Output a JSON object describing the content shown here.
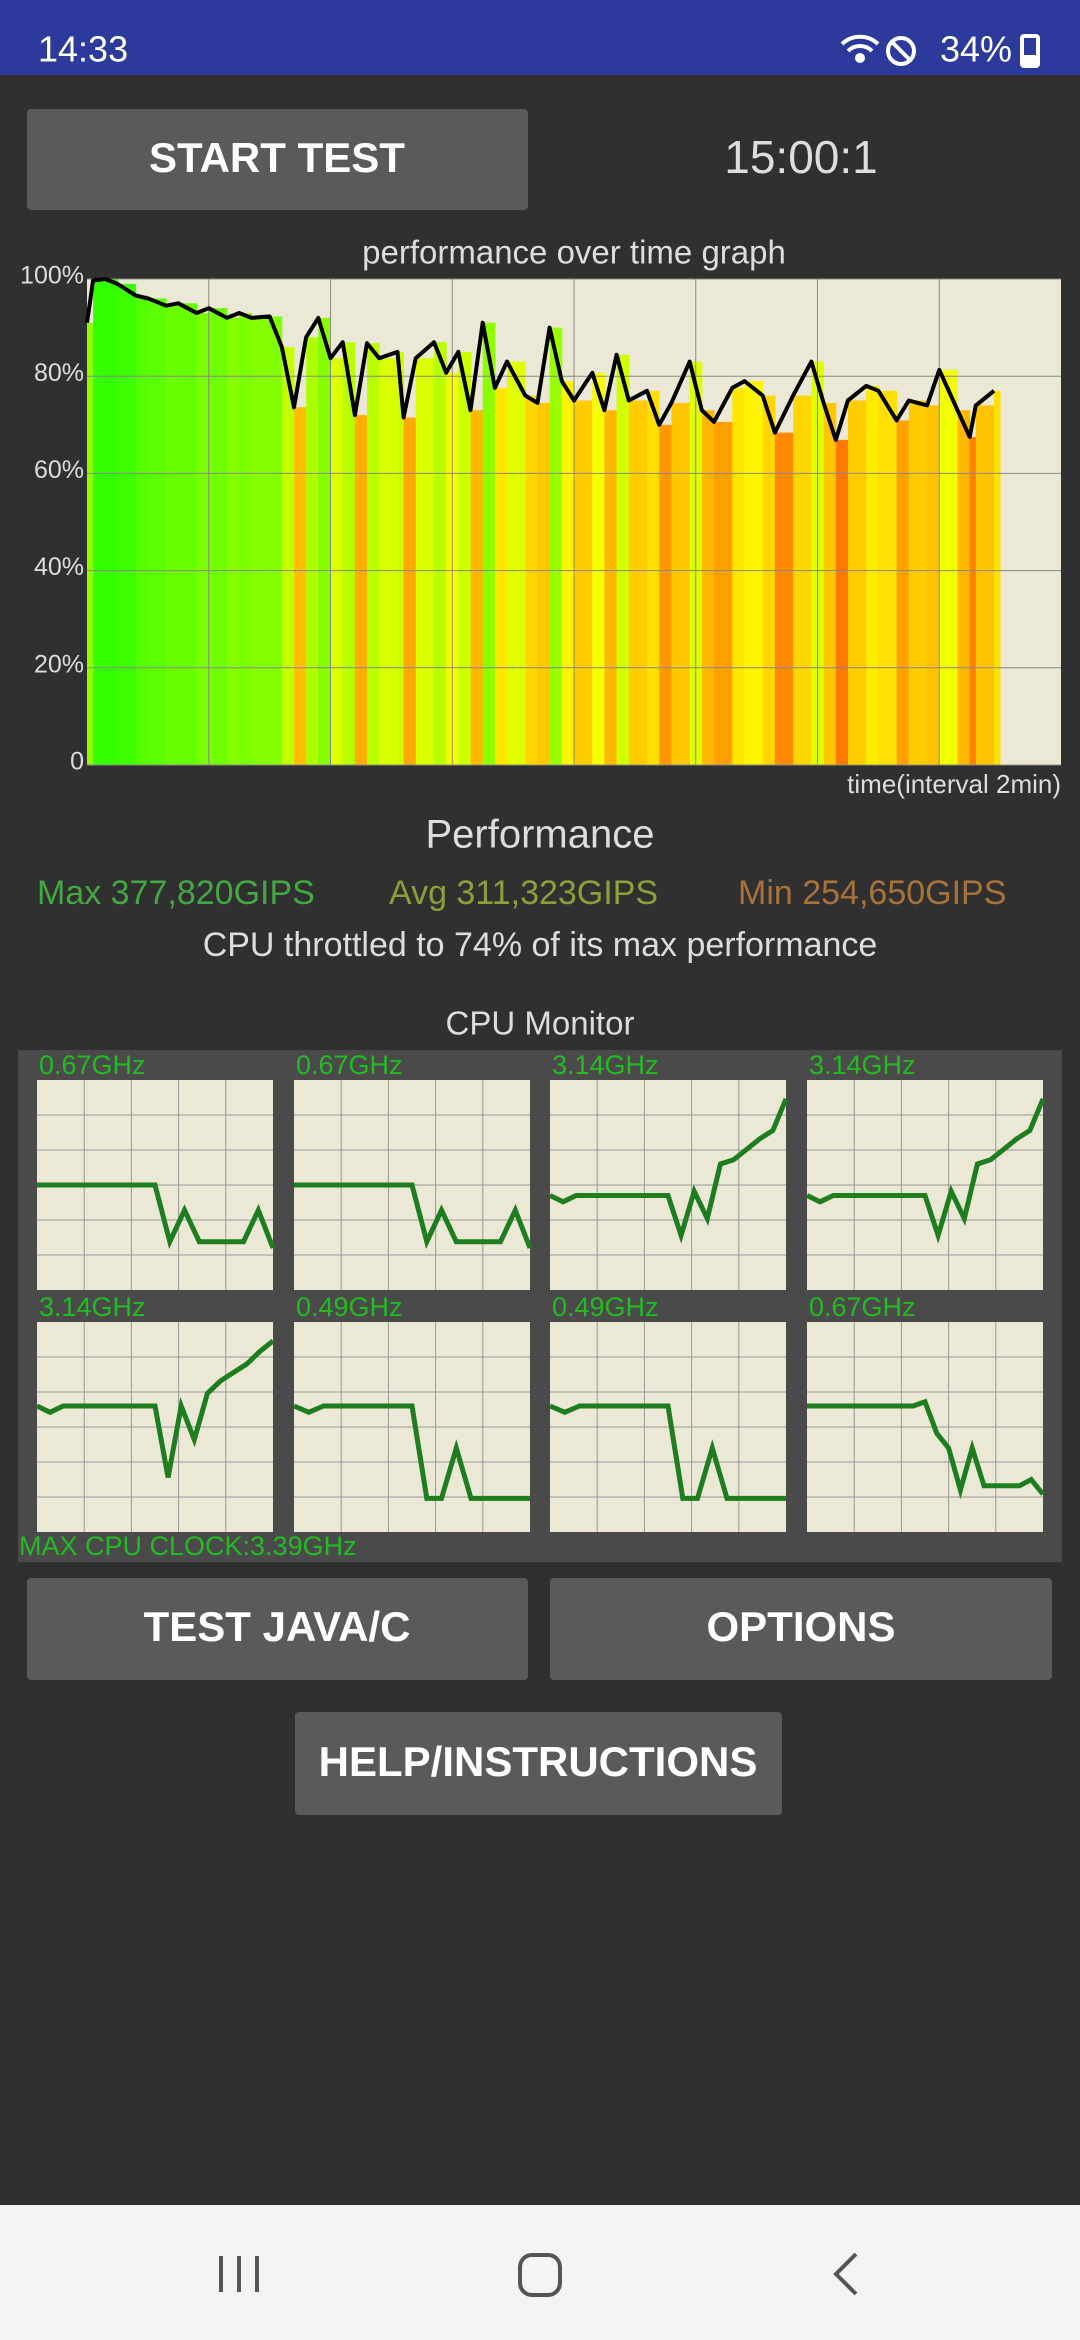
{
  "status_bar": {
    "time": "14:33",
    "battery": "34%"
  },
  "start_button": "START TEST",
  "timer": "15:00:1",
  "chart_data": {
    "type": "line",
    "title": "performance over time graph",
    "x_label": "time(interval 2min)",
    "xlim": [
      0,
      16
    ],
    "ylim": [
      0,
      100
    ],
    "yticks": [
      0,
      {
        "value": 20,
        "label": "20%"
      },
      {
        "value": 40,
        "label": "40%"
      },
      {
        "value": 60,
        "label": "60%"
      },
      {
        "value": 80,
        "label": "80%"
      },
      {
        "value": 100,
        "label": "100%"
      }
    ],
    "x_grid": [
      2,
      4,
      6,
      8,
      10,
      12,
      14
    ],
    "grid": true,
    "color": "#000000",
    "x": [
      0,
      0.1,
      0.3,
      0.5,
      0.8,
      1.0,
      1.3,
      1.5,
      1.8,
      2.0,
      2.3,
      2.5,
      2.7,
      3.0,
      3.2,
      3.4,
      3.6,
      3.8,
      4.0,
      4.2,
      4.4,
      4.6,
      4.8,
      5.1,
      5.2,
      5.4,
      5.7,
      5.9,
      6.1,
      6.3,
      6.5,
      6.7,
      6.9,
      7.2,
      7.4,
      7.6,
      7.8,
      8.0,
      8.3,
      8.5,
      8.7,
      8.9,
      9.2,
      9.4,
      9.6,
      9.9,
      10.1,
      10.3,
      10.6,
      10.8,
      11.1,
      11.3,
      11.6,
      11.9,
      12.1,
      12.3,
      12.5,
      12.8,
      13.0,
      13.3,
      13.5,
      13.8,
      14.0,
      14.3,
      14.5,
      14.6,
      14.9
    ],
    "values": [
      91,
      99.7,
      100,
      99,
      96.6,
      96,
      94.5,
      95,
      93,
      94,
      92,
      93,
      92,
      92.3,
      86,
      73.6,
      88,
      92,
      83.7,
      87,
      72,
      86.8,
      83.7,
      85,
      71.5,
      83.7,
      87,
      80.7,
      85,
      73,
      91,
      77.6,
      83,
      76,
      74.5,
      90,
      79,
      75,
      80.7,
      73,
      84.4,
      75,
      77,
      70,
      74.5,
      83,
      73,
      70.6,
      77.6,
      79,
      76,
      68.4,
      76,
      83,
      74.5,
      66.9,
      75,
      78,
      77,
      70.9,
      75,
      74,
      81.3,
      73,
      67.5,
      74,
      77
    ]
  },
  "performance": {
    "title": "Performance",
    "max": "Max 377,820GIPS",
    "avg": "Avg 311,323GIPS",
    "min": "Min 254,650GIPS",
    "throttle": "CPU throttled to 74% of its max performance"
  },
  "cpu_monitor": {
    "title": "CPU Monitor",
    "ylim": [
      0,
      100
    ],
    "cores": [
      {
        "label": "0.67GHz",
        "values": [
          50,
          50,
          50,
          50,
          50,
          50,
          50,
          50,
          50,
          23,
          38,
          23,
          23,
          23,
          23,
          38,
          20
        ]
      },
      {
        "label": "0.67GHz",
        "values": [
          50,
          50,
          50,
          50,
          50,
          50,
          50,
          50,
          50,
          23,
          38,
          23,
          23,
          23,
          23,
          38,
          20
        ]
      },
      {
        "label": "3.14GHz",
        "values": [
          45,
          42,
          45,
          45,
          45,
          45,
          45,
          45,
          45,
          45,
          26,
          47,
          34,
          60,
          62,
          67,
          72,
          76,
          91
        ]
      },
      {
        "label": "3.14GHz",
        "values": [
          45,
          42,
          45,
          45,
          45,
          45,
          45,
          45,
          45,
          45,
          26,
          47,
          34,
          60,
          62,
          67,
          72,
          76,
          91
        ]
      },
      {
        "label": "3.14GHz",
        "values": [
          60,
          57,
          60,
          60,
          60,
          60,
          60,
          60,
          60,
          60,
          26,
          60,
          44,
          66,
          72,
          76,
          80,
          86,
          91
        ]
      },
      {
        "label": "0.49GHz",
        "values": [
          60,
          57,
          60,
          60,
          60,
          60,
          60,
          60,
          60,
          16,
          16,
          40,
          16,
          16,
          16,
          16,
          16
        ]
      },
      {
        "label": "0.49GHz",
        "values": [
          60,
          57,
          60,
          60,
          60,
          60,
          60,
          60,
          60,
          16,
          16,
          40,
          16,
          16,
          16,
          16,
          16
        ]
      },
      {
        "label": "0.67GHz",
        "values": [
          60,
          60,
          60,
          60,
          60,
          60,
          60,
          60,
          60,
          60,
          62,
          47,
          40,
          20,
          40,
          22,
          22,
          22,
          22,
          25,
          18
        ]
      }
    ],
    "max_clock": "MAX CPU CLOCK:3.39GHz"
  },
  "buttons": {
    "test_java": "TEST JAVA/C",
    "options": "OPTIONS",
    "help": "HELP/INSTRUCTIONS"
  }
}
